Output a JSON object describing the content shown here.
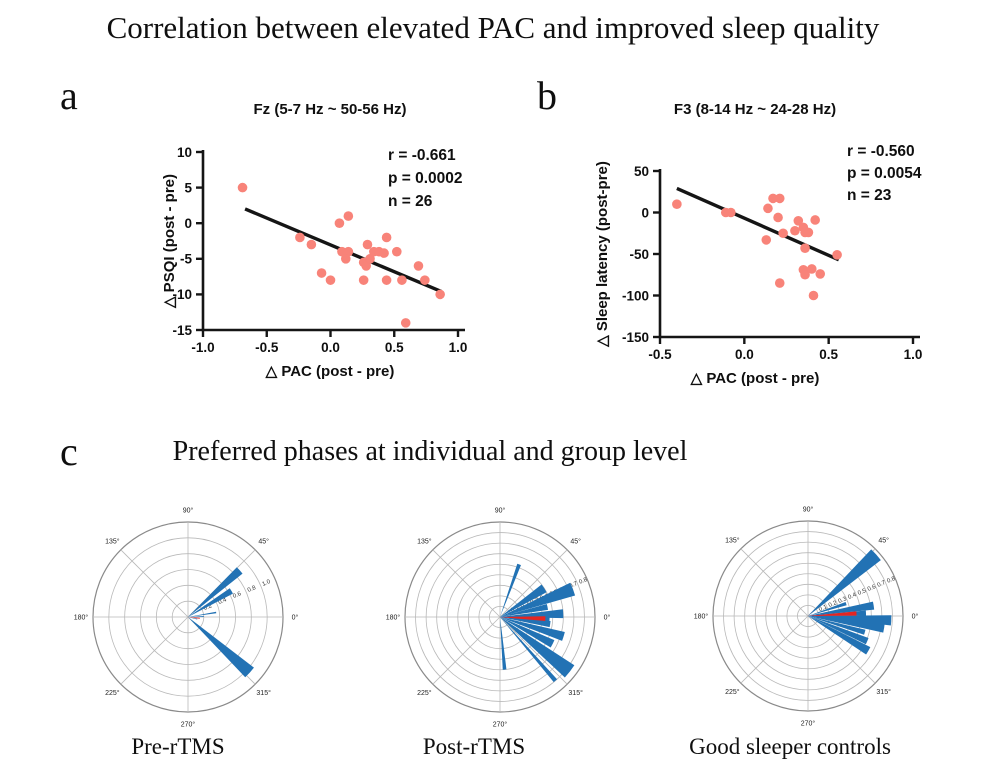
{
  "title": "Correlation between elevated PAC and improved sleep quality",
  "panels": {
    "a": "a",
    "b": "b",
    "c": "c"
  },
  "panel_c_title": "Preferred phases at individual and group level",
  "colors": {
    "point": "#F88379",
    "line": "#151515",
    "axis": "#151515",
    "bar_blue": "#2272B4",
    "bar_red": "#E52521",
    "grid": "#B9B9B9",
    "outer": "#8A8A8A"
  },
  "chart_data": [
    {
      "id": "scatter_a",
      "type": "scatter",
      "title": "Fz (5-7 Hz ~ 50-56 Hz)",
      "xlabel": "△ PAC  (post - pre)",
      "ylabel": "△ PSQI  (post - pre)",
      "xlim": [
        -1.0,
        1.0
      ],
      "ylim": [
        -15,
        10
      ],
      "xticks": [
        {
          "v": -1.0,
          "l": "-1.0"
        },
        {
          "v": -0.5,
          "l": "-0.5"
        },
        {
          "v": 0.0,
          "l": "0.0"
        },
        {
          "v": 0.5,
          "l": "0.5"
        },
        {
          "v": 1.0,
          "l": "1.0"
        }
      ],
      "yticks": [
        {
          "v": 10,
          "l": "10"
        },
        {
          "v": 5,
          "l": "5"
        },
        {
          "v": 0,
          "l": "0"
        },
        {
          "v": -5,
          "l": "-5"
        },
        {
          "v": -10,
          "l": "-10"
        },
        {
          "v": -15,
          "l": "-15"
        }
      ],
      "stats": [
        "r  = -0.661",
        "p = 0.0002",
        "n = 26"
      ],
      "regression": {
        "x1": -0.67,
        "y1": 2.0,
        "x2": 0.87,
        "y2": -9.6
      },
      "points": [
        [
          -0.69,
          5
        ],
        [
          -0.24,
          -2
        ],
        [
          -0.15,
          -3
        ],
        [
          -0.07,
          -7
        ],
        [
          0.0,
          -8
        ],
        [
          0.07,
          0
        ],
        [
          0.14,
          1
        ],
        [
          0.09,
          -4
        ],
        [
          0.14,
          -4
        ],
        [
          0.12,
          -5
        ],
        [
          0.26,
          -5.5
        ],
        [
          0.28,
          -6
        ],
        [
          0.26,
          -8
        ],
        [
          0.29,
          -3
        ],
        [
          0.34,
          -4
        ],
        [
          0.38,
          -4
        ],
        [
          0.31,
          -5
        ],
        [
          0.42,
          -4.2
        ],
        [
          0.44,
          -2
        ],
        [
          0.52,
          -4
        ],
        [
          0.44,
          -8
        ],
        [
          0.56,
          -8
        ],
        [
          0.59,
          -14
        ],
        [
          0.69,
          -6
        ],
        [
          0.74,
          -8
        ],
        [
          0.86,
          -10
        ]
      ]
    },
    {
      "id": "scatter_b",
      "type": "scatter",
      "title": "F3 (8-14 Hz ~ 24-28 Hz)",
      "xlabel": "△ PAC  (post - pre)",
      "ylabel": "△ Sleep latency  (post-pre)",
      "xlim": [
        -0.5,
        1.0
      ],
      "ylim": [
        -150,
        50
      ],
      "xticks": [
        {
          "v": -0.5,
          "l": "-0.5"
        },
        {
          "v": 0.0,
          "l": "0.0"
        },
        {
          "v": 0.5,
          "l": "0.5"
        },
        {
          "v": 1.0,
          "l": "1.0"
        }
      ],
      "yticks": [
        {
          "v": 50,
          "l": "50"
        },
        {
          "v": 0,
          "l": "0"
        },
        {
          "v": -50,
          "l": "-50"
        },
        {
          "v": -100,
          "l": "-100"
        },
        {
          "v": -150,
          "l": "-150"
        }
      ],
      "stats": [
        "r  = -0.560",
        "p = 0.0054",
        "n = 23"
      ],
      "regression": {
        "x1": -0.4,
        "y1": 29,
        "x2": 0.56,
        "y2": -57
      },
      "points": [
        [
          -0.4,
          10
        ],
        [
          -0.11,
          0
        ],
        [
          -0.08,
          0
        ],
        [
          0.14,
          5
        ],
        [
          0.17,
          17
        ],
        [
          0.21,
          17
        ],
        [
          0.2,
          -6
        ],
        [
          0.13,
          -33
        ],
        [
          0.23,
          -25
        ],
        [
          0.3,
          -22
        ],
        [
          0.32,
          -10
        ],
        [
          0.35,
          -18
        ],
        [
          0.36,
          -24
        ],
        [
          0.38,
          -24
        ],
        [
          0.42,
          -9
        ],
        [
          0.36,
          -43
        ],
        [
          0.55,
          -51
        ],
        [
          0.35,
          -69
        ],
        [
          0.36,
          -75
        ],
        [
          0.4,
          -68
        ],
        [
          0.45,
          -74
        ],
        [
          0.21,
          -85
        ],
        [
          0.41,
          -100
        ]
      ]
    },
    {
      "id": "polar_pre",
      "type": "polar_rose",
      "caption": "Pre-rTMS",
      "r_axis": 1.2,
      "r_ticks": [
        0.2,
        0.4,
        0.6,
        0.8,
        1.0
      ],
      "angle_labels": [
        "0°",
        "45°",
        "90°",
        "135°",
        "180°",
        "225°",
        "270°",
        "315°"
      ],
      "wedges": [
        {
          "a": 42,
          "r": 0.88,
          "w": 7,
          "c": "blue"
        },
        {
          "a": 31,
          "r": 0.64,
          "w": 7,
          "c": "blue"
        },
        {
          "a": 9,
          "r": 0.36,
          "w": 3,
          "c": "blue"
        },
        {
          "a": 2,
          "r": 0.2,
          "w": 3,
          "c": "blue"
        },
        {
          "a": -13,
          "r": 0.12,
          "w": 4,
          "c": "blue"
        },
        {
          "a": -42,
          "r": 1.05,
          "w": 9,
          "c": "blue"
        },
        {
          "a": -6,
          "r": 0.15,
          "w": 5,
          "c": "red"
        }
      ]
    },
    {
      "id": "polar_post",
      "type": "polar_rose",
      "caption": "Post-rTMS",
      "r_axis": 0.9,
      "r_ticks": [
        0.1,
        0.2,
        0.3,
        0.4,
        0.5,
        0.6,
        0.7,
        0.8
      ],
      "angle_labels": [
        "0°",
        "45°",
        "90°",
        "135°",
        "180°",
        "225°",
        "270°",
        "315°"
      ],
      "wedges": [
        {
          "a": 70,
          "r": 0.53,
          "w": 4,
          "c": "blue"
        },
        {
          "a": 33,
          "r": 0.5,
          "w": 10,
          "c": "blue"
        },
        {
          "a": 21,
          "r": 0.74,
          "w": 10,
          "c": "blue"
        },
        {
          "a": 12,
          "r": 0.46,
          "w": 7,
          "c": "blue"
        },
        {
          "a": 3,
          "r": 0.6,
          "w": 8,
          "c": "blue"
        },
        {
          "a": -2,
          "r": 0.47,
          "w": 6,
          "c": "blue"
        },
        {
          "a": -8,
          "r": 0.48,
          "w": 7,
          "c": "blue"
        },
        {
          "a": -17,
          "r": 0.63,
          "w": 8,
          "c": "blue"
        },
        {
          "a": -27,
          "r": 0.56,
          "w": 8,
          "c": "blue"
        },
        {
          "a": -38,
          "r": 0.84,
          "w": 10,
          "c": "blue"
        },
        {
          "a": -49,
          "r": 0.8,
          "w": 3,
          "c": "blue"
        },
        {
          "a": -85,
          "r": 0.5,
          "w": 4,
          "c": "blue"
        },
        {
          "a": -2,
          "r": 0.43,
          "w": 6,
          "c": "red"
        }
      ]
    },
    {
      "id": "polar_controls",
      "type": "polar_rose",
      "caption": "Good sleeper controls",
      "r_axis": 0.9,
      "r_ticks": [
        0.1,
        0.2,
        0.3,
        0.4,
        0.5,
        0.6,
        0.7,
        0.8
      ],
      "angle_labels": [
        "0°",
        "45°",
        "90°",
        "135°",
        "180°",
        "225°",
        "270°",
        "315°"
      ],
      "wedges": [
        {
          "a": 42,
          "r": 0.87,
          "w": 9,
          "c": "blue"
        },
        {
          "a": 18,
          "r": 0.38,
          "w": 5,
          "c": "blue"
        },
        {
          "a": 9,
          "r": 0.63,
          "w": 7,
          "c": "blue"
        },
        {
          "a": 3,
          "r": 0.55,
          "w": 5,
          "c": "blue"
        },
        {
          "a": -3,
          "r": 0.79,
          "w": 7,
          "c": "blue"
        },
        {
          "a": -9,
          "r": 0.73,
          "w": 7,
          "c": "blue"
        },
        {
          "a": -16,
          "r": 0.56,
          "w": 5,
          "c": "blue"
        },
        {
          "a": -23,
          "r": 0.61,
          "w": 6,
          "c": "blue"
        },
        {
          "a": -30,
          "r": 0.66,
          "w": 7,
          "c": "blue"
        },
        {
          "a": 3,
          "r": 0.46,
          "w": 5,
          "c": "red"
        }
      ]
    }
  ]
}
